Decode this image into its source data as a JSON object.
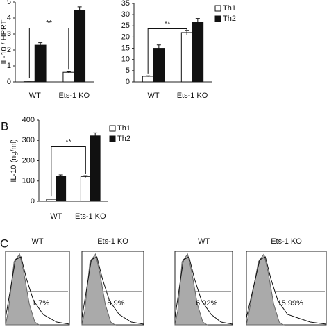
{
  "chart_data": [
    {
      "type": "bar",
      "y_label": "IL-10 / HPRT",
      "categories": [
        "WT",
        "Ets-1 KO"
      ],
      "series": [
        {
          "name": "Th1",
          "color": "#ffffff",
          "values": [
            0.05,
            0.6
          ],
          "errors": [
            0.01,
            0.03
          ]
        },
        {
          "name": "Th2",
          "color": "#111111",
          "values": [
            2.3,
            4.5
          ],
          "errors": [
            0.15,
            0.2
          ]
        }
      ],
      "ylim": [
        0,
        5
      ],
      "yticks": [
        0,
        1,
        2,
        3,
        4,
        5
      ],
      "annotation": "**"
    },
    {
      "type": "bar",
      "categories": [
        "WT",
        "Ets-1 KO"
      ],
      "series": [
        {
          "name": "Th1",
          "color": "#ffffff",
          "values": [
            2.5,
            22
          ],
          "errors": [
            0.2,
            1
          ]
        },
        {
          "name": "Th2",
          "color": "#111111",
          "values": [
            15,
            26.5
          ],
          "errors": [
            1.5,
            1.8
          ]
        }
      ],
      "ylim": [
        0,
        35
      ],
      "yticks": [
        0,
        5,
        10,
        15,
        20,
        25,
        30,
        35
      ],
      "legend": "right",
      "annotation": "**"
    },
    {
      "type": "bar",
      "panel": "B",
      "y_label": "IL-10 (ng/ml)",
      "categories": [
        "WT",
        "Ets-1 KO"
      ],
      "series": [
        {
          "name": "Th1",
          "color": "#ffffff",
          "values": [
            10,
            122
          ],
          "errors": [
            2,
            4
          ]
        },
        {
          "name": "Th2",
          "color": "#111111",
          "values": [
            123,
            322
          ],
          "errors": [
            7,
            15
          ]
        }
      ],
      "ylim": [
        0,
        400
      ],
      "yticks": [
        0,
        100,
        200,
        300,
        400
      ],
      "legend": "right",
      "annotation": "**"
    }
  ],
  "panel_c": {
    "label": "C",
    "plots": [
      {
        "title": "WT",
        "percent": "1.7%"
      },
      {
        "title": "Ets-1 KO",
        "percent": "8.9%"
      },
      {
        "title": "WT",
        "percent": "6.92%"
      },
      {
        "title": "Ets-1 KO",
        "percent": "15.99%"
      }
    ]
  }
}
